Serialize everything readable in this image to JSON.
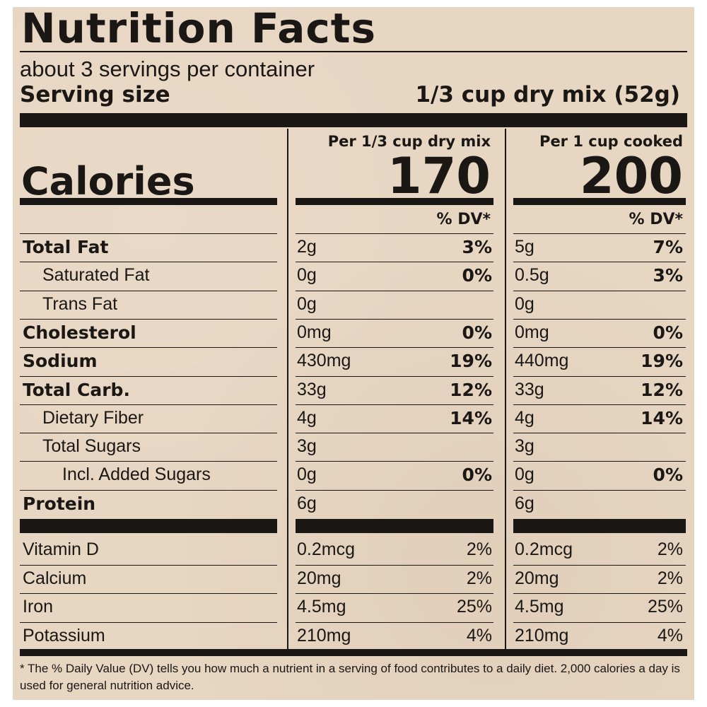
{
  "title": "Nutrition Facts",
  "servings_per_container": "about 3 servings per container",
  "serving_size_label": "Serving size",
  "serving_size_value": "1/3 cup dry mix (52g)",
  "columns": [
    {
      "header": "Per 1/3 cup dry mix",
      "calories": "170",
      "dv_header": "% DV*"
    },
    {
      "header": "Per 1 cup cooked",
      "calories": "200",
      "dv_header": "% DV*"
    }
  ],
  "calories_label": "Calories",
  "nutrients": [
    {
      "label": "Total Fat",
      "bold": true,
      "indent": 0,
      "a1": "2g",
      "p1": "3%",
      "a2": "5g",
      "p2": "7%"
    },
    {
      "label": "Saturated Fat",
      "bold": false,
      "indent": 1,
      "a1": "0g",
      "p1": "0%",
      "a2": "0.5g",
      "p2": "3%"
    },
    {
      "label": "Trans Fat",
      "bold": false,
      "indent": 1,
      "a1": "0g",
      "p1": "",
      "a2": "0g",
      "p2": ""
    },
    {
      "label": "Cholesterol",
      "bold": true,
      "indent": 0,
      "a1": "0mg",
      "p1": "0%",
      "a2": "0mg",
      "p2": "0%"
    },
    {
      "label": "Sodium",
      "bold": true,
      "indent": 0,
      "a1": "430mg",
      "p1": "19%",
      "a2": "440mg",
      "p2": "19%"
    },
    {
      "label": "Total Carb.",
      "bold": true,
      "indent": 0,
      "a1": "33g",
      "p1": "12%",
      "a2": "33g",
      "p2": "12%"
    },
    {
      "label": "Dietary Fiber",
      "bold": false,
      "indent": 1,
      "a1": "4g",
      "p1": "14%",
      "a2": "4g",
      "p2": "14%"
    },
    {
      "label": "Total Sugars",
      "bold": false,
      "indent": 1,
      "a1": "3g",
      "p1": "",
      "a2": "3g",
      "p2": ""
    },
    {
      "label": "Incl. Added Sugars",
      "bold": false,
      "indent": 2,
      "a1": "0g",
      "p1": "0%",
      "a2": "0g",
      "p2": "0%"
    },
    {
      "label": "Protein",
      "bold": true,
      "indent": 0,
      "a1": "6g",
      "p1": "",
      "a2": "6g",
      "p2": ""
    }
  ],
  "vitamins": [
    {
      "label": "Vitamin D",
      "a1": "0.2mcg",
      "p1": "2%",
      "a2": "0.2mcg",
      "p2": "2%"
    },
    {
      "label": "Calcium",
      "a1": "20mg",
      "p1": "2%",
      "a2": "20mg",
      "p2": "2%"
    },
    {
      "label": "Iron",
      "a1": "4.5mg",
      "p1": "25%",
      "a2": "4.5mg",
      "p2": "25%"
    },
    {
      "label": "Potassium",
      "a1": "210mg",
      "p1": "4%",
      "a2": "210mg",
      "p2": "4%"
    }
  ],
  "footnote": "* The % Daily Value (DV) tells you how much a nutrient in a serving of food contributes to a daily diet. 2,000 calories a day is used for general nutrition advice.",
  "colors": {
    "background": "#e7d6c2",
    "ink": "#1a1714"
  }
}
